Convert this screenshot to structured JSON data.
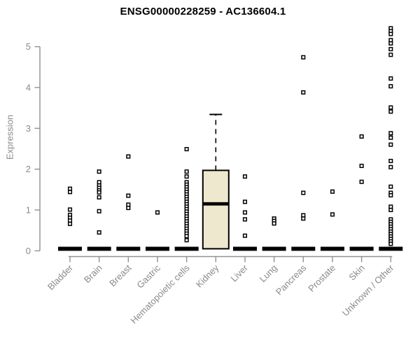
{
  "title": "ENSG00000228259 - AC136604.1",
  "chart_data": {
    "type": "boxplot",
    "title": "ENSG00000228259 - AC136604.1",
    "xlabel": "",
    "ylabel": "Expression",
    "ylim": [
      0,
      5.5
    ],
    "yticks": [
      0,
      1,
      2,
      3,
      4,
      5
    ],
    "grid": false,
    "legend": "none",
    "colors": {
      "axis": "#919191",
      "tick_label": "#8a8a8a",
      "title": "#000000",
      "box_fill": "#ede8ce",
      "box_stroke": "#000000",
      "marker_stroke": "#000000",
      "marker_fill": "#ffffff"
    },
    "categories": [
      "Bladder",
      "Brain",
      "Breast",
      "Gastric",
      "Hematopoietic cells",
      "Kidney",
      "Liver",
      "Lung",
      "Pancreas",
      "Prostate",
      "Skin",
      "Unknown / Other"
    ],
    "series": [
      {
        "category": "Bladder",
        "box": {
          "q1": 0,
          "median": 0,
          "q3": 0,
          "whisker_low": 0,
          "whisker_high": 0,
          "collapsed": true
        },
        "points": [
          1.52,
          1.44,
          1.01,
          0.88,
          0.81,
          0.74,
          0.66
        ]
      },
      {
        "category": "Brain",
        "box": {
          "q1": 0,
          "median": 0,
          "q3": 0,
          "whisker_low": 0,
          "whisker_high": 0,
          "collapsed": true
        },
        "points": [
          1.94,
          1.68,
          1.6,
          1.54,
          1.48,
          1.43,
          1.31,
          0.97,
          0.45
        ]
      },
      {
        "category": "Breast",
        "box": {
          "q1": 0,
          "median": 0,
          "q3": 0,
          "whisker_low": 0,
          "whisker_high": 0,
          "collapsed": true
        },
        "points": [
          2.31,
          1.35,
          1.13,
          1.05
        ]
      },
      {
        "category": "Gastric",
        "box": {
          "q1": 0,
          "median": 0,
          "q3": 0,
          "whisker_low": 0,
          "whisker_high": 0,
          "collapsed": true
        },
        "points": [
          0.94
        ]
      },
      {
        "category": "Hematopoietic cells",
        "box": {
          "q1": 0,
          "median": 0,
          "q3": 0,
          "whisker_low": 0,
          "whisker_high": 0,
          "collapsed": true
        },
        "points": [
          2.49,
          1.94,
          1.82,
          1.68,
          1.62,
          1.56,
          1.5,
          1.44,
          1.38,
          1.32,
          1.26,
          1.2,
          1.14,
          1.08,
          1.02,
          0.96,
          0.9,
          0.84,
          0.78,
          0.72,
          0.66,
          0.6,
          0.54,
          0.48,
          0.42,
          0.36,
          0.26
        ]
      },
      {
        "category": "Kidney",
        "box": {
          "q1": 0.05,
          "median": 1.15,
          "q3": 1.97,
          "whisker_low": 0.05,
          "whisker_high": 3.34,
          "collapsed": false
        },
        "points": []
      },
      {
        "category": "Liver",
        "box": {
          "q1": 0,
          "median": 0,
          "q3": 0,
          "whisker_low": 0,
          "whisker_high": 0,
          "collapsed": true
        },
        "points": [
          1.82,
          1.2,
          0.94,
          0.77,
          0.37
        ]
      },
      {
        "category": "Lung",
        "box": {
          "q1": 0,
          "median": 0,
          "q3": 0,
          "whisker_low": 0,
          "whisker_high": 0,
          "collapsed": true
        },
        "points": [
          0.79,
          0.73,
          0.67
        ]
      },
      {
        "category": "Pancreas",
        "box": {
          "q1": 0,
          "median": 0,
          "q3": 0,
          "whisker_low": 0,
          "whisker_high": 0,
          "collapsed": true
        },
        "points": [
          4.74,
          3.88,
          1.42,
          0.87,
          0.79
        ]
      },
      {
        "category": "Prostate",
        "box": {
          "q1": 0,
          "median": 0,
          "q3": 0,
          "whisker_low": 0,
          "whisker_high": 0,
          "collapsed": true
        },
        "points": [
          1.45,
          0.89
        ]
      },
      {
        "category": "Skin",
        "box": {
          "q1": 0,
          "median": 0,
          "q3": 0,
          "whisker_low": 0,
          "whisker_high": 0,
          "collapsed": true
        },
        "points": [
          2.8,
          2.08,
          1.69
        ]
      },
      {
        "category": "Unknown / Other",
        "box": {
          "q1": 0,
          "median": 0,
          "q3": 0,
          "whisker_low": 0,
          "whisker_high": 0,
          "collapsed": true
        },
        "points": [
          5.45,
          5.38,
          5.31,
          5.16,
          5.08,
          4.94,
          4.8,
          4.22,
          4.03,
          3.51,
          3.41,
          2.88,
          2.77,
          2.6,
          2.2,
          2.05,
          1.57,
          1.42,
          1.36,
          1.08,
          1.0,
          0.77,
          0.71,
          0.65,
          0.59,
          0.53,
          0.47,
          0.41,
          0.35,
          0.29,
          0.23,
          0.17
        ]
      }
    ]
  }
}
